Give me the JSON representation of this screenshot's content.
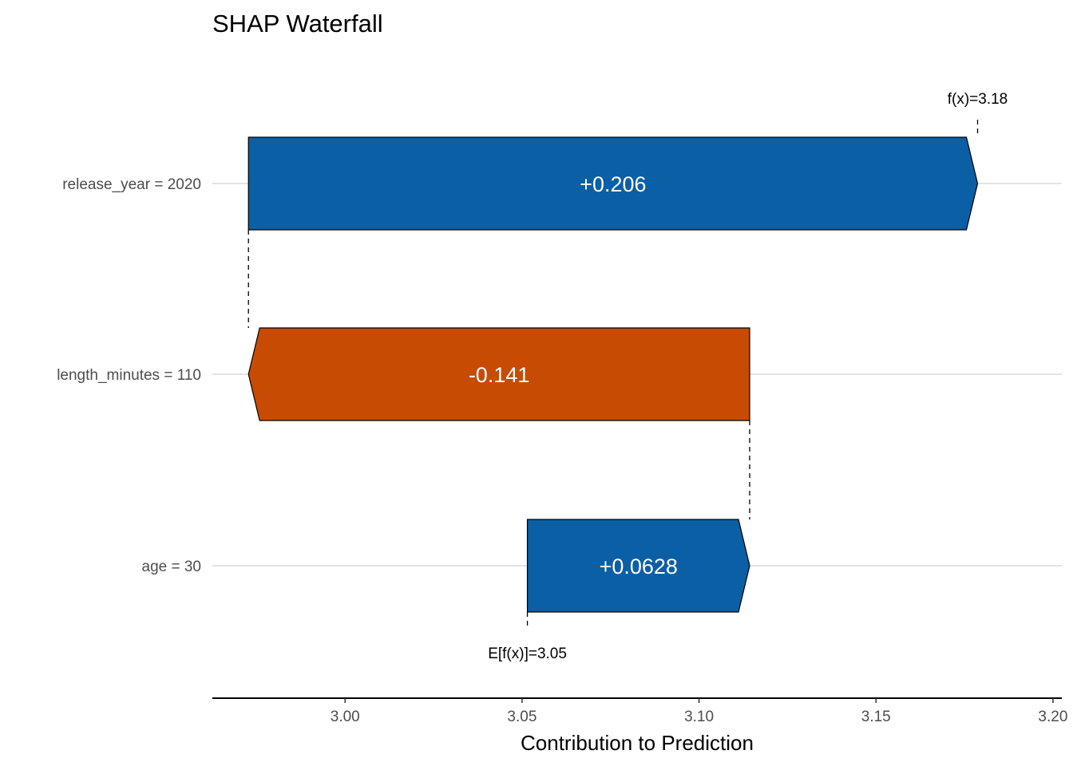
{
  "chart_data": {
    "type": "bar",
    "title": "SHAP Waterfall",
    "xlabel": "Contribution to Prediction",
    "ylabel": "",
    "xlim": [
      2.9625,
      3.2025
    ],
    "xticks": [
      3.0,
      3.05,
      3.1,
      3.15,
      3.2
    ],
    "xtick_labels": [
      "3.00",
      "3.05",
      "3.10",
      "3.15",
      "3.20"
    ],
    "grid": "horizontal-major",
    "base_value": 3.0515,
    "prediction": 3.1787,
    "base_label": "E[f(x)]=3.05",
    "prediction_label": "f(x)=3.18",
    "features": [
      {
        "name": "release_year = 2020",
        "value": 0.206,
        "label": "+0.206",
        "start": 2.9727,
        "end": 3.1787,
        "color": "#0B5FA5"
      },
      {
        "name": "length_minutes = 110",
        "value": -0.141,
        "label": "-0.141",
        "start": 3.1143,
        "end": 2.9727,
        "color": "#C84B04"
      },
      {
        "name": "age = 30",
        "value": 0.0628,
        "label": "+0.0628",
        "start": 3.0515,
        "end": 3.1143,
        "color": "#0B5FA5"
      }
    ]
  }
}
